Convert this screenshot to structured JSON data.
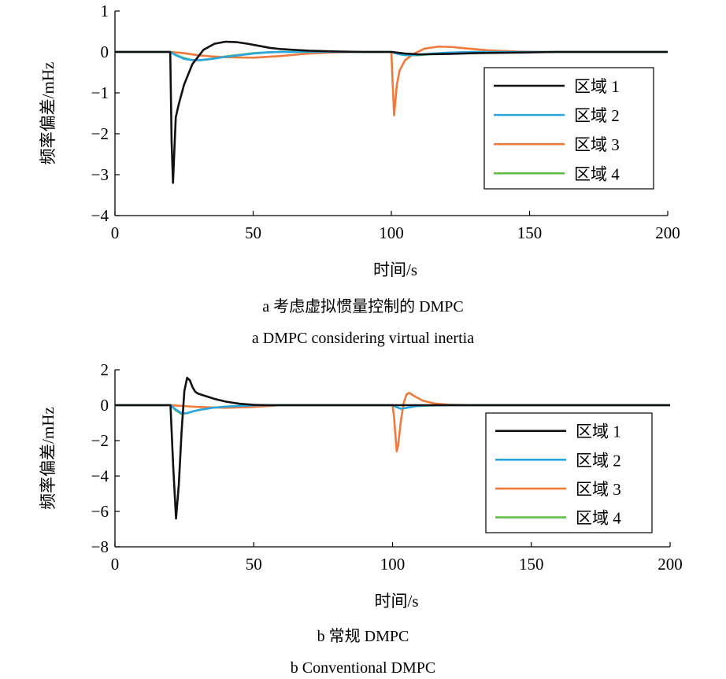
{
  "colors": {
    "区域 1": "#111111",
    "区域 2": "#2aa7e0",
    "区域 3": "#f07a3c",
    "区域 4": "#5fbf45"
  },
  "chart_data": [
    {
      "type": "line",
      "caption_cn": "a  考虑虚拟惯量控制的 DMPC",
      "caption_en": "a  DMPC considering virtual inertia",
      "xlabel": "时间/s",
      "ylabel": "频率偏差/mHz",
      "xlim": [
        0,
        200
      ],
      "ylim": [
        -4,
        1
      ],
      "xticks": [
        "0",
        "50",
        "100",
        "150",
        "200"
      ],
      "yticks": [
        "1",
        "0",
        "−1",
        "−2",
        "−3",
        "−4"
      ],
      "legend_position": "right",
      "series": [
        {
          "name": "区域 1",
          "x": [
            0,
            20,
            20.5,
            21,
            22,
            23,
            25,
            28,
            32,
            36,
            40,
            44,
            48,
            52,
            56,
            60,
            70,
            80,
            90,
            100,
            105,
            110,
            120,
            130,
            140,
            150,
            160,
            200
          ],
          "y": [
            0,
            0,
            -2.2,
            -3.2,
            -1.6,
            -1.3,
            -0.8,
            -0.3,
            0.05,
            0.2,
            0.25,
            0.24,
            0.2,
            0.15,
            0.1,
            0.07,
            0.03,
            0.01,
            0,
            0,
            -0.04,
            -0.06,
            -0.05,
            -0.03,
            -0.02,
            -0.01,
            0,
            0
          ]
        },
        {
          "name": "区域 2",
          "x": [
            0,
            20,
            22,
            25,
            28,
            31,
            35,
            40,
            45,
            50,
            55,
            60,
            70,
            80,
            100,
            101,
            103,
            106,
            110,
            115,
            120,
            130,
            150,
            200
          ],
          "y": [
            0,
            0,
            -0.08,
            -0.17,
            -0.2,
            -0.2,
            -0.17,
            -0.12,
            -0.08,
            -0.04,
            -0.01,
            0,
            0,
            0,
            0,
            -0.02,
            -0.06,
            -0.08,
            -0.07,
            -0.04,
            -0.02,
            0,
            0,
            0
          ]
        },
        {
          "name": "区域 3",
          "x": [
            0,
            20,
            25,
            30,
            35,
            40,
            50,
            60,
            70,
            80,
            90,
            100,
            100.5,
            101,
            102,
            103,
            105,
            108,
            112,
            117,
            122,
            128,
            135,
            145,
            155,
            200
          ],
          "y": [
            0,
            0,
            -0.03,
            -0.08,
            -0.11,
            -0.13,
            -0.14,
            -0.1,
            -0.04,
            -0.01,
            0,
            0,
            -0.8,
            -1.55,
            -0.8,
            -0.45,
            -0.2,
            -0.05,
            0.08,
            0.13,
            0.12,
            0.08,
            0.04,
            0.01,
            0,
            0
          ]
        },
        {
          "name": "区域 4",
          "x": [
            0,
            20,
            22,
            25,
            28,
            31,
            35,
            40,
            45,
            50,
            55,
            60,
            70,
            80,
            100,
            102,
            105,
            110,
            115,
            120,
            130,
            200
          ],
          "y": [
            0,
            0,
            -0.07,
            -0.15,
            -0.2,
            -0.2,
            -0.17,
            -0.11,
            -0.07,
            -0.03,
            -0.01,
            0,
            0,
            0,
            0,
            -0.04,
            -0.08,
            -0.08,
            -0.05,
            -0.02,
            0,
            0
          ]
        }
      ]
    },
    {
      "type": "line",
      "caption_cn": "b  常规 DMPC",
      "caption_en": "b  Conventional DMPC",
      "xlabel": "时间/s",
      "ylabel": "频率偏差/mHz",
      "xlim": [
        0,
        200
      ],
      "ylim": [
        -8,
        2
      ],
      "xticks": [
        "0",
        "50",
        "100",
        "150",
        "200"
      ],
      "yticks": [
        "2",
        "0",
        "−2",
        "−4",
        "−6",
        "−8"
      ],
      "legend_position": "bottom-right",
      "series": [
        {
          "name": "区域 1",
          "x": [
            0,
            20,
            21,
            22,
            23,
            24,
            25,
            26,
            27,
            28,
            29,
            30,
            33,
            36,
            40,
            45,
            50,
            55,
            60,
            200
          ],
          "y": [
            0,
            0,
            -3.5,
            -6.4,
            -4.5,
            -1.5,
            0.8,
            1.55,
            1.4,
            1.0,
            0.75,
            0.65,
            0.5,
            0.35,
            0.2,
            0.08,
            0.02,
            0,
            0,
            0
          ]
        },
        {
          "name": "区域 2",
          "x": [
            0,
            20,
            22,
            24,
            26,
            28,
            31,
            35,
            40,
            45,
            50,
            55,
            60,
            100,
            101,
            103,
            105,
            108,
            112,
            120,
            200
          ],
          "y": [
            0,
            0,
            -0.25,
            -0.45,
            -0.45,
            -0.35,
            -0.25,
            -0.15,
            -0.08,
            -0.04,
            -0.01,
            0,
            0,
            0,
            -0.08,
            -0.2,
            -0.15,
            -0.06,
            -0.02,
            0,
            0
          ]
        },
        {
          "name": "区域 3",
          "x": [
            0,
            20,
            30,
            40,
            50,
            55,
            60,
            100,
            100.5,
            101,
            101.5,
            102,
            103,
            104,
            105,
            106,
            108,
            111,
            115,
            120,
            130,
            200
          ],
          "y": [
            0,
            0,
            -0.1,
            -0.15,
            -0.1,
            -0.05,
            0,
            0,
            -0.6,
            -1.6,
            -2.6,
            -2.3,
            -0.9,
            0.1,
            0.6,
            0.7,
            0.5,
            0.25,
            0.1,
            0.03,
            0,
            0
          ]
        },
        {
          "name": "区域 4",
          "x": [
            0,
            20,
            22,
            24,
            26,
            28,
            31,
            35,
            40,
            45,
            50,
            55,
            60,
            100,
            101,
            103,
            105,
            108,
            112,
            120,
            200
          ],
          "y": [
            0,
            0,
            -0.3,
            -0.5,
            -0.45,
            -0.35,
            -0.25,
            -0.15,
            -0.08,
            -0.04,
            -0.01,
            0,
            0,
            0,
            -0.08,
            -0.2,
            -0.15,
            -0.06,
            -0.02,
            0,
            0
          ]
        }
      ]
    }
  ]
}
